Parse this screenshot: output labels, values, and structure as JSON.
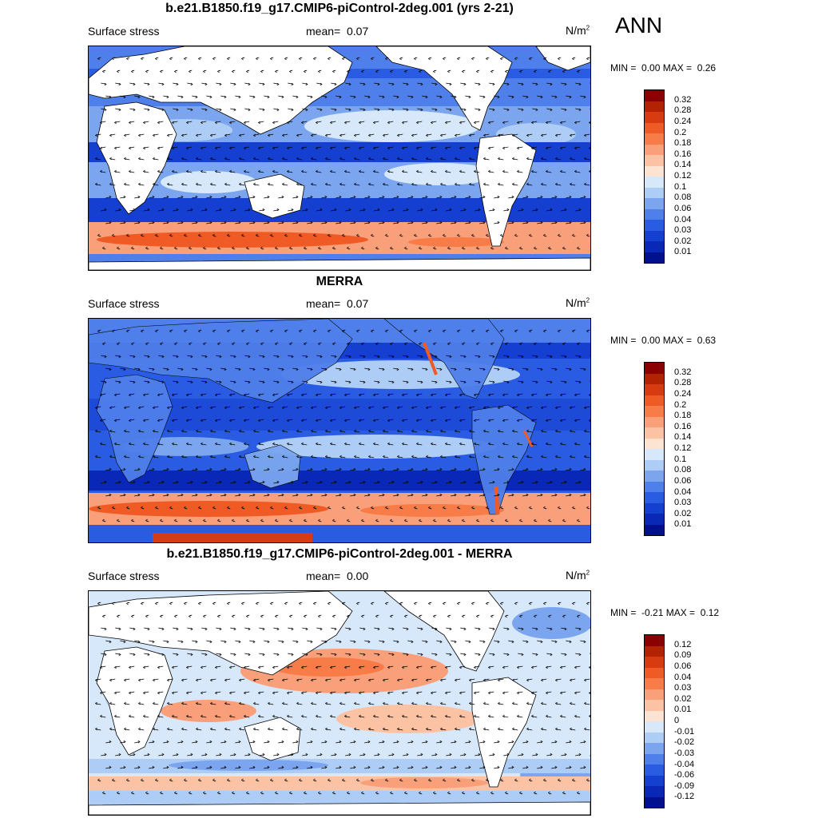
{
  "season": "ANN",
  "panels": [
    {
      "id": "model",
      "title": "b.e21.B1850.f19_g17.CMIP6-piControl-2deg.001 (yrs 2-21)",
      "variable": "Surface stress",
      "mean_label": "mean=",
      "mean_value": "0.07",
      "units": "N/m",
      "units_exp": "2",
      "min_label": "MIN =",
      "min_value": "0.00",
      "max_label": "MAX =",
      "max_value": "0.26",
      "colorbar_levels": [
        "0.32",
        "0.28",
        "0.24",
        "0.2",
        "0.18",
        "0.16",
        "0.14",
        "0.12",
        "0.1",
        "0.08",
        "0.06",
        "0.04",
        "0.03",
        "0.02",
        "0.01"
      ]
    },
    {
      "id": "obs",
      "title": "MERRA",
      "variable": "Surface stress",
      "mean_label": "mean=",
      "mean_value": "0.07",
      "units": "N/m",
      "units_exp": "2",
      "min_label": "MIN =",
      "min_value": "0.00",
      "max_label": "MAX =",
      "max_value": "0.63",
      "colorbar_levels": [
        "0.32",
        "0.28",
        "0.24",
        "0.2",
        "0.18",
        "0.16",
        "0.14",
        "0.12",
        "0.1",
        "0.08",
        "0.06",
        "0.04",
        "0.03",
        "0.02",
        "0.01"
      ]
    },
    {
      "id": "diff",
      "title": "b.e21.B1850.f19_g17.CMIP6-piControl-2deg.001 - MERRA",
      "variable": "Surface stress",
      "mean_label": "mean=",
      "mean_value": "0.00",
      "units": "N/m",
      "units_exp": "2",
      "min_label": "MIN =",
      "min_value": "-0.21",
      "max_label": "MAX =",
      "max_value": "0.12",
      "colorbar_levels": [
        "0.12",
        "0.09",
        "0.06",
        "0.04",
        "0.03",
        "0.02",
        "0.01",
        "0",
        "-0.01",
        "-0.02",
        "-0.03",
        "-0.04",
        "-0.06",
        "-0.09",
        "-0.12"
      ]
    }
  ],
  "colors": {
    "abs_scale": [
      "#8b0000",
      "#b22203",
      "#d83b0f",
      "#f05a25",
      "#f77c47",
      "#f9a07a",
      "#fbc2a4",
      "#fde3d2",
      "#d7e8fb",
      "#aecdf6",
      "#7ba6ef",
      "#4f7fea",
      "#2a5ce3",
      "#153fd0",
      "#0a28b8",
      "#00108f"
    ],
    "diff_scale": [
      "#8b0000",
      "#b22203",
      "#d83b0f",
      "#f05a25",
      "#f77c47",
      "#f9a07a",
      "#fbc2a4",
      "#fde3d2",
      "#d7e8fb",
      "#aecdf6",
      "#7ba6ef",
      "#4f7fea",
      "#2a5ce3",
      "#153fd0",
      "#0a28b8",
      "#00108f"
    ]
  }
}
